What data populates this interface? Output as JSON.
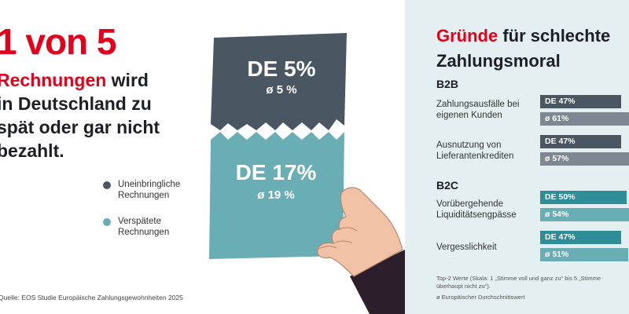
{
  "headline": {
    "big": "1 von 5",
    "line1_red": "Rechnungen",
    "line1_rest": " wird",
    "line2": "in Deutschland zu",
    "line3": "spät oder gar nicht",
    "line4": "bezahlt."
  },
  "legend": [
    {
      "label": "Uneinbringliche Rechnungen",
      "color": "#4b5663"
    },
    {
      "label": "Verspätete Rechnungen",
      "color": "#6aaeb5"
    }
  ],
  "papers": {
    "top": {
      "main": "DE 5%",
      "sub": "ø 5 %"
    },
    "bottom": {
      "main": "DE 17%",
      "sub": "ø 19 %"
    }
  },
  "source": "Quelle: EOS Studie Europäische Zahlungsgewohnheiten 2025",
  "panel": {
    "title_red": "Gründe",
    "title_rest": " für schlechte",
    "title_line2": "Zahlungsmoral",
    "footnote": "Top-2 Werte (Skala: 1 „Stimme voll und ganz zu“ bis 5 „Stimme überhaupt nicht zu“).",
    "avg_note": "ø Europäischer Durchschnittswert"
  },
  "chart_data": {
    "type": "bar",
    "title": "Gründe für schlechte Zahlungsmoral",
    "value_unit": "%",
    "groups": [
      {
        "name": "B2B",
        "items": [
          {
            "label": "Zahlungsausfälle bei eigenen Kunden",
            "de": 47,
            "avg": 61,
            "de_label": "DE 47%",
            "avg_label": "ø  61%"
          },
          {
            "label": "Ausnutzung von Lieferantenkrediten",
            "de": 47,
            "avg": 57,
            "de_label": "DE 47%",
            "avg_label": "ø  57%"
          }
        ]
      },
      {
        "name": "B2C",
        "items": [
          {
            "label": "Vorübergehende Liquiditätsengpässe",
            "de": 50,
            "avg": 54,
            "de_label": "DE 50%",
            "avg_label": "ø  54%"
          },
          {
            "label": "Vergesslichkeit",
            "de": 47,
            "avg": 51,
            "de_label": "DE 47%",
            "avg_label": "ø  51%"
          }
        ]
      }
    ],
    "colors": {
      "B2B_de": "#4b5663",
      "B2B_avg": "#7e8893",
      "B2C_de": "#2e8d96",
      "B2C_avg": "#6aaeb5"
    }
  }
}
